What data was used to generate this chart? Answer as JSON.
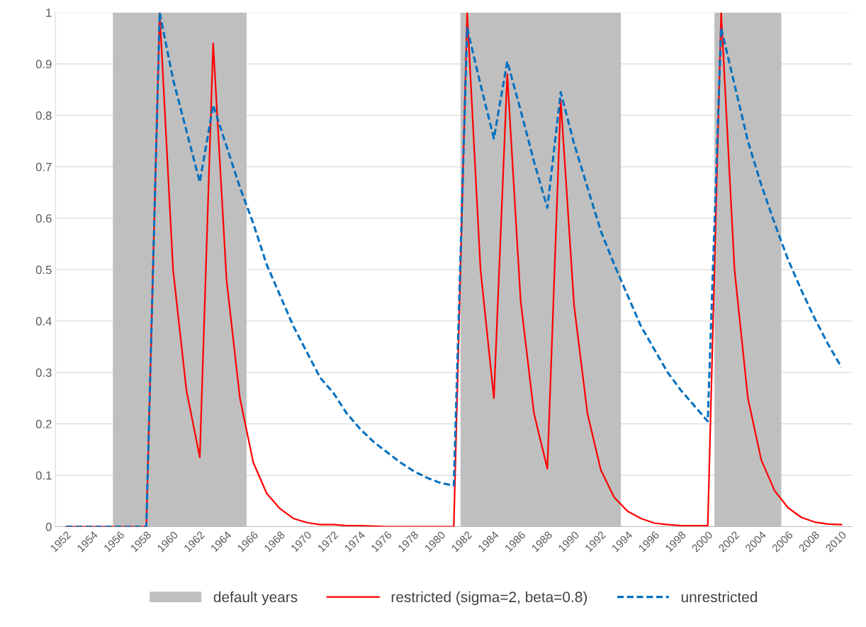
{
  "chart_data": {
    "type": "line",
    "x": [
      1952,
      1953,
      1954,
      1955,
      1956,
      1957,
      1958,
      1959,
      1960,
      1961,
      1962,
      1963,
      1964,
      1965,
      1966,
      1967,
      1968,
      1969,
      1970,
      1971,
      1972,
      1973,
      1974,
      1975,
      1976,
      1977,
      1978,
      1979,
      1980,
      1981,
      1982,
      1983,
      1984,
      1985,
      1986,
      1987,
      1988,
      1989,
      1990,
      1991,
      1992,
      1993,
      1994,
      1995,
      1996,
      1997,
      1998,
      1999,
      2000,
      2001,
      2002,
      2003,
      2004,
      2005,
      2006,
      2007,
      2008,
      2009,
      2010
    ],
    "series": [
      {
        "name": "restricted (sigma=2, beta=0.8)",
        "color": "#ff0000",
        "line_style": "solid",
        "values": [
          0,
          0,
          0,
          0,
          0,
          0,
          0,
          1.0,
          0.5,
          0.265,
          0.135,
          0.94,
          0.48,
          0.25,
          0.125,
          0.065,
          0.035,
          0.016,
          0.008,
          0.004,
          0.004,
          0.002,
          0.002,
          0.001,
          0,
          0,
          0,
          0,
          0,
          0,
          1.0,
          0.5,
          0.25,
          0.88,
          0.44,
          0.22,
          0.113,
          0.83,
          0.43,
          0.22,
          0.11,
          0.057,
          0.03,
          0.016,
          0.007,
          0.004,
          0.002,
          0.002,
          0.002,
          1.0,
          0.5,
          0.25,
          0.13,
          0.07,
          0.037,
          0.018,
          0.009,
          0.005,
          0.004
        ]
      },
      {
        "name": "unrestricted",
        "color": "#0070c0",
        "line_style": "dashed",
        "values": [
          0,
          0,
          0,
          0,
          0,
          0,
          0,
          1.0,
          0.87,
          0.77,
          0.67,
          0.82,
          0.74,
          0.66,
          0.59,
          0.51,
          0.45,
          0.39,
          0.34,
          0.29,
          0.26,
          0.22,
          0.19,
          0.165,
          0.145,
          0.125,
          0.108,
          0.095,
          0.085,
          0.08,
          0.97,
          0.86,
          0.755,
          0.905,
          0.81,
          0.71,
          0.62,
          0.845,
          0.745,
          0.66,
          0.575,
          0.51,
          0.45,
          0.39,
          0.345,
          0.3,
          0.265,
          0.235,
          0.205,
          0.97,
          0.86,
          0.75,
          0.665,
          0.59,
          0.52,
          0.46,
          0.405,
          0.355,
          0.31
        ]
      }
    ],
    "bands": [
      {
        "axis": "x",
        "from": 1955.5,
        "to": 1965.5,
        "label": "default years",
        "color": "#bfbfbf"
      },
      {
        "axis": "x",
        "from": 1981.5,
        "to": 1993.5,
        "color": "#bfbfbf"
      },
      {
        "axis": "x",
        "from": 2000.5,
        "to": 2005.5,
        "color": "#bfbfbf"
      }
    ],
    "xlim": [
      1951.2,
      2010.8
    ],
    "xticks": [
      1952,
      1954,
      1956,
      1958,
      1960,
      1962,
      1964,
      1966,
      1968,
      1970,
      1972,
      1974,
      1976,
      1978,
      1980,
      1982,
      1984,
      1986,
      1988,
      1990,
      1992,
      1994,
      1996,
      1998,
      2000,
      2002,
      2004,
      2006,
      2008,
      2010
    ],
    "ylim": [
      0,
      1
    ],
    "yticks": [
      0,
      0.1,
      0.2,
      0.3,
      0.4,
      0.5,
      0.6,
      0.7,
      0.8,
      0.9,
      1
    ],
    "grid": "y",
    "legend": "bottom"
  }
}
